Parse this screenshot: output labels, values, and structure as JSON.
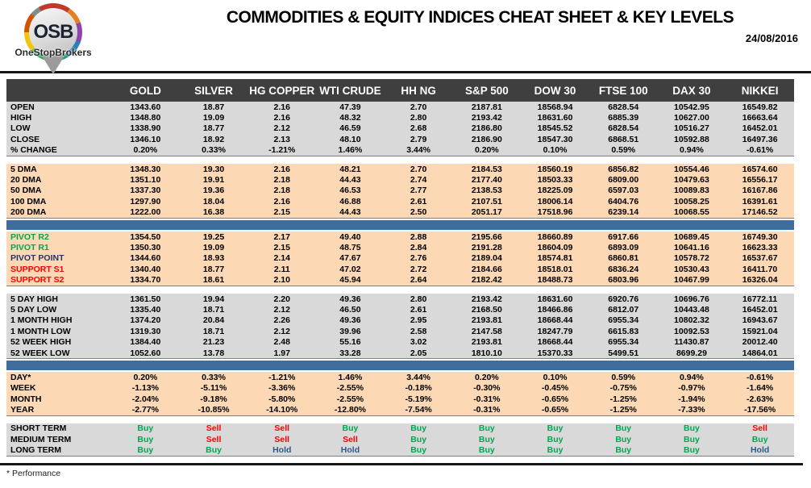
{
  "header": {
    "logo_text": "OSB",
    "logo_subtext": "OneStopBrokers",
    "title": "COMMODITIES & EQUITY INDICES CHEAT SHEET & KEY LEVELS",
    "date": "24/08/2016"
  },
  "colors": {
    "header_bg": "#3F3F3F",
    "section_gray": "#D9D9D9",
    "section_peach": "#FCD8B4",
    "blue_bar": "#3E6D9E",
    "buy_green": "#00A651",
    "sell_red": "#FF0000",
    "hold_navy": "#2B5A8C",
    "pivot_green": "#00A651",
    "pivot_point_navy": "#1F3864",
    "support_red": "#FF0000"
  },
  "signal_colors": {
    "Buy": "#00A651",
    "Sell": "#FF0000",
    "Hold": "#2B5A8C"
  },
  "label_colors": {
    "green": "#00A651",
    "red": "#FF0000",
    "navy": "#1F3864"
  },
  "table": {
    "columns": [
      "GOLD",
      "SILVER",
      "HG COPPER",
      "WTI CRUDE",
      "HH NG",
      "S&P 500",
      "DOW 30",
      "FTSE 100",
      "DAX 30",
      "NIKKEI"
    ],
    "sections": [
      {
        "type": "rows",
        "bg": "gray",
        "rows": [
          {
            "label": "OPEN",
            "values": [
              "1343.60",
              "18.87",
              "2.16",
              "47.39",
              "2.70",
              "2187.81",
              "18568.94",
              "6828.54",
              "10542.95",
              "16549.82"
            ]
          },
          {
            "label": "HIGH",
            "values": [
              "1348.80",
              "19.09",
              "2.16",
              "48.32",
              "2.80",
              "2193.42",
              "18631.60",
              "6885.39",
              "10627.00",
              "16663.64"
            ]
          },
          {
            "label": "LOW",
            "values": [
              "1338.90",
              "18.77",
              "2.12",
              "46.59",
              "2.68",
              "2186.80",
              "18545.52",
              "6828.54",
              "10516.27",
              "16452.01"
            ]
          },
          {
            "label": "CLOSE",
            "values": [
              "1346.10",
              "18.92",
              "2.13",
              "48.10",
              "2.79",
              "2186.90",
              "18547.30",
              "6868.51",
              "10592.88",
              "16497.36"
            ]
          },
          {
            "label": "% CHANGE",
            "values": [
              "0.20%",
              "0.33%",
              "-1.21%",
              "1.46%",
              "3.44%",
              "0.20%",
              "0.10%",
              "0.59%",
              "0.94%",
              "-0.61%"
            ]
          }
        ]
      },
      {
        "type": "gap"
      },
      {
        "type": "rows",
        "bg": "peach",
        "rows": [
          {
            "label": "5 DMA",
            "values": [
              "1348.30",
              "19.30",
              "2.16",
              "48.21",
              "2.70",
              "2184.53",
              "18560.19",
              "6856.82",
              "10554.46",
              "16574.60"
            ]
          },
          {
            "label": "20 DMA",
            "values": [
              "1351.10",
              "19.91",
              "2.18",
              "44.43",
              "2.74",
              "2177.40",
              "18503.33",
              "6809.00",
              "10479.63",
              "16556.17"
            ]
          },
          {
            "label": "50 DMA",
            "values": [
              "1337.30",
              "19.36",
              "2.18",
              "46.53",
              "2.77",
              "2138.53",
              "18225.09",
              "6597.03",
              "10089.83",
              "16167.86"
            ]
          },
          {
            "label": "100 DMA",
            "values": [
              "1297.90",
              "18.04",
              "2.16",
              "46.88",
              "2.61",
              "2107.51",
              "18006.14",
              "6404.76",
              "10058.25",
              "16391.61"
            ]
          },
          {
            "label": "200 DMA",
            "values": [
              "1222.00",
              "16.38",
              "2.15",
              "44.43",
              "2.50",
              "2051.17",
              "17518.96",
              "6239.14",
              "10068.55",
              "17146.52"
            ]
          }
        ]
      },
      {
        "type": "blue_bar"
      },
      {
        "type": "rows",
        "bg": "peach",
        "rows": [
          {
            "label": "PIVOT R2",
            "label_color": "green",
            "values": [
              "1354.50",
              "19.25",
              "2.17",
              "49.40",
              "2.88",
              "2195.66",
              "18660.89",
              "6917.66",
              "10689.45",
              "16749.30"
            ]
          },
          {
            "label": "PIVOT R1",
            "label_color": "green",
            "values": [
              "1350.30",
              "19.09",
              "2.15",
              "48.75",
              "2.84",
              "2191.28",
              "18604.09",
              "6893.09",
              "10641.16",
              "16623.33"
            ]
          },
          {
            "label": "PIVOT POINT",
            "label_color": "navy",
            "values": [
              "1344.60",
              "18.93",
              "2.14",
              "47.67",
              "2.76",
              "2189.04",
              "18574.81",
              "6860.81",
              "10578.72",
              "16537.67"
            ]
          },
          {
            "label": "SUPPORT S1",
            "label_color": "red",
            "values": [
              "1340.40",
              "18.77",
              "2.11",
              "47.02",
              "2.72",
              "2184.66",
              "18518.01",
              "6836.24",
              "10530.43",
              "16411.70"
            ]
          },
          {
            "label": "SUPPORT S2",
            "label_color": "red",
            "values": [
              "1334.70",
              "18.61",
              "2.10",
              "45.94",
              "2.64",
              "2182.42",
              "18488.73",
              "6803.96",
              "10467.99",
              "16326.04"
            ]
          }
        ]
      },
      {
        "type": "gap"
      },
      {
        "type": "rows",
        "bg": "gray",
        "rows": [
          {
            "label": "5 DAY HIGH",
            "values": [
              "1361.50",
              "19.94",
              "2.20",
              "49.36",
              "2.80",
              "2193.42",
              "18631.60",
              "6920.76",
              "10696.76",
              "16772.11"
            ]
          },
          {
            "label": "5 DAY LOW",
            "values": [
              "1335.40",
              "18.71",
              "2.12",
              "46.50",
              "2.61",
              "2168.50",
              "18466.86",
              "6812.07",
              "10443.48",
              "16452.01"
            ]
          },
          {
            "label": "1 MONTH HIGH",
            "values": [
              "1374.20",
              "20.84",
              "2.26",
              "49.36",
              "2.95",
              "2193.81",
              "18668.44",
              "6955.34",
              "10802.32",
              "16943.67"
            ]
          },
          {
            "label": "1 MONTH LOW",
            "values": [
              "1319.30",
              "18.71",
              "2.12",
              "39.96",
              "2.58",
              "2147.58",
              "18247.79",
              "6615.83",
              "10092.53",
              "15921.04"
            ]
          },
          {
            "label": "52 WEEK HIGH",
            "values": [
              "1384.40",
              "21.23",
              "2.48",
              "55.16",
              "3.02",
              "2193.81",
              "18668.44",
              "6955.34",
              "11430.87",
              "20012.40"
            ]
          },
          {
            "label": "52 WEEK LOW",
            "values": [
              "1052.60",
              "13.78",
              "1.97",
              "33.28",
              "2.05",
              "1810.10",
              "15370.33",
              "5499.51",
              "8699.29",
              "14864.01"
            ]
          }
        ]
      },
      {
        "type": "blue_bar"
      },
      {
        "type": "rows",
        "bg": "peach",
        "rows": [
          {
            "label": "DAY*",
            "values": [
              "0.20%",
              "0.33%",
              "-1.21%",
              "1.46%",
              "3.44%",
              "0.20%",
              "0.10%",
              "0.59%",
              "0.94%",
              "-0.61%"
            ]
          },
          {
            "label": "WEEK",
            "values": [
              "-1.13%",
              "-5.11%",
              "-3.36%",
              "-2.55%",
              "-0.18%",
              "-0.30%",
              "-0.45%",
              "-0.75%",
              "-0.97%",
              "-1.64%"
            ]
          },
          {
            "label": "MONTH",
            "values": [
              "-2.04%",
              "-9.18%",
              "-5.80%",
              "-2.55%",
              "-5.19%",
              "-0.31%",
              "-0.65%",
              "-1.25%",
              "-1.94%",
              "-2.63%"
            ]
          },
          {
            "label": "YEAR",
            "values": [
              "-2.77%",
              "-10.85%",
              "-14.10%",
              "-12.80%",
              "-7.54%",
              "-0.31%",
              "-0.65%",
              "-1.25%",
              "-7.33%",
              "-17.56%"
            ]
          }
        ]
      },
      {
        "type": "gap"
      },
      {
        "type": "rows",
        "bg": "gray",
        "rows": [
          {
            "label": "SHORT TERM",
            "values": [
              "Buy",
              "Sell",
              "Sell",
              "Buy",
              "Buy",
              "Buy",
              "Buy",
              "Buy",
              "Buy",
              "Sell"
            ]
          },
          {
            "label": "MEDIUM TERM",
            "values": [
              "Buy",
              "Sell",
              "Sell",
              "Sell",
              "Buy",
              "Buy",
              "Buy",
              "Buy",
              "Buy",
              "Buy"
            ]
          },
          {
            "label": "LONG TERM",
            "values": [
              "Buy",
              "Buy",
              "Hold",
              "Hold",
              "Buy",
              "Buy",
              "Buy",
              "Buy",
              "Buy",
              "Hold"
            ]
          }
        ]
      }
    ]
  },
  "footnote": "* Performance"
}
